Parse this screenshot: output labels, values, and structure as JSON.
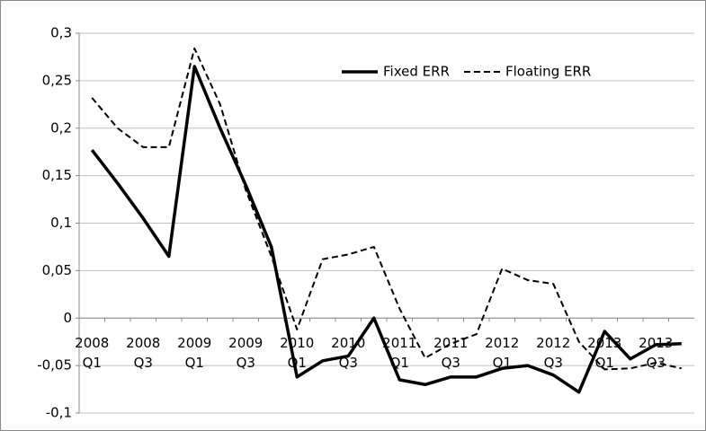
{
  "chart_data": {
    "type": "line",
    "categories": [
      "2008\nQ1",
      null,
      "2008\nQ3",
      null,
      "2009\nQ1",
      null,
      "2009\nQ3",
      null,
      "2010\nQ1",
      null,
      "2010\nQ3",
      null,
      "2011\nQ1",
      null,
      "2011\nQ3",
      null,
      "2012\nQ1",
      null,
      "2012\nQ3",
      null,
      "2013\nQ1",
      null,
      "2013\nQ3",
      null
    ],
    "series": [
      {
        "name": "Fixed ERR",
        "color": "#000000",
        "dash": "solid",
        "values": [
          0.177,
          0.142,
          0.105,
          0.065,
          0.265,
          0.2,
          0.14,
          0.075,
          -0.062,
          -0.045,
          -0.04,
          0,
          -0.065,
          -0.07,
          -0.062,
          -0.062,
          -0.053,
          -0.05,
          -0.06,
          -0.078,
          -0.014,
          -0.043,
          -0.028,
          -0.027
        ]
      },
      {
        "name": "Floating ERR",
        "color": "#000000",
        "dash": "dashed",
        "values": [
          0.232,
          0.2,
          0.18,
          0.18,
          0.284,
          0.225,
          0.135,
          0.065,
          -0.012,
          0.062,
          0.067,
          0.075,
          0.01,
          -0.042,
          -0.027,
          -0.017,
          0.052,
          0.04,
          0.036,
          -0.025,
          -0.054,
          -0.053,
          -0.047,
          -0.053
        ]
      }
    ],
    "ylim": [
      -0.1,
      0.3
    ],
    "yticks": [
      {
        "value": -0.1,
        "label": "-0,1"
      },
      {
        "value": -0.05,
        "label": "-0,05"
      },
      0,
      {
        "value": 0.05,
        "label": "0,05"
      },
      {
        "value": 0.1,
        "label": "0,1"
      },
      {
        "value": 0.15,
        "label": "0,15"
      },
      {
        "value": 0.2,
        "label": "0,2"
      },
      {
        "value": 0.25,
        "label": "0,25"
      },
      {
        "value": 0.3,
        "label": "0,3"
      }
    ],
    "grid": true,
    "legend": "top-right"
  }
}
